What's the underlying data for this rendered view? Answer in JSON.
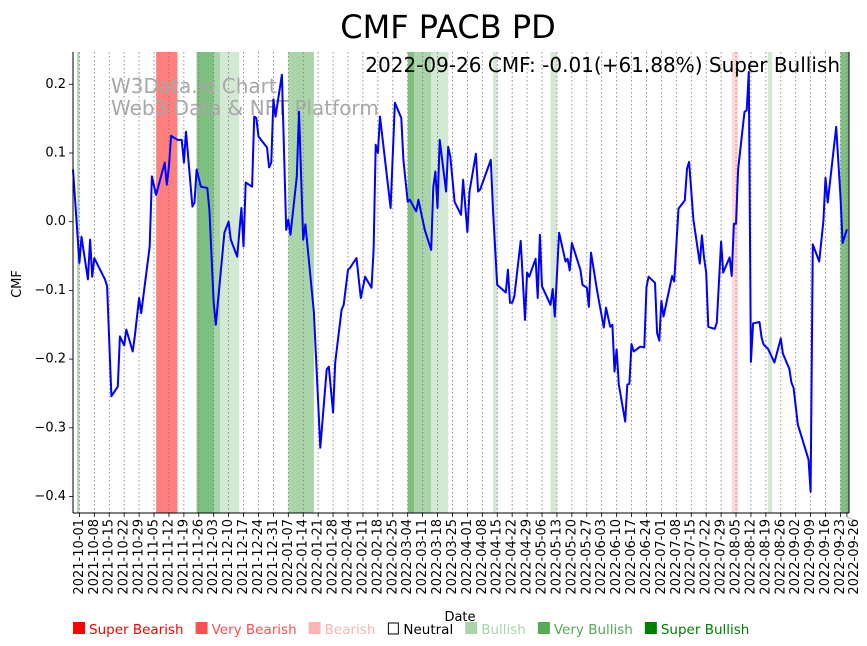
{
  "chart_data": {
    "type": "line",
    "title": "CMF PACB PD",
    "annotation": "2022-09-26 CMF: -0.01(+61.88%) Super Bullish",
    "watermark": [
      "W3Data.io Chart",
      "Web3 Data & NFT Platform"
    ],
    "xlabel": "Date",
    "ylabel": "CMF",
    "xlim": [
      "2021-09-28",
      "2022-09-27"
    ],
    "ylim": [
      -0.424,
      0.247
    ],
    "grid": "vertical dotted at x ticks",
    "yticks": [
      0.2,
      0.1,
      0.0,
      -0.1,
      -0.2,
      -0.3,
      -0.4
    ],
    "ytick_labels": [
      "0.2",
      "0.1",
      "0.0",
      "−0.1",
      "−0.2",
      "−0.3",
      "−0.4"
    ],
    "xticks": [
      "2021-10-01",
      "2021-10-08",
      "2021-10-15",
      "2021-10-22",
      "2021-10-29",
      "2021-11-05",
      "2021-11-12",
      "2021-11-19",
      "2021-11-26",
      "2021-12-03",
      "2021-12-10",
      "2021-12-17",
      "2021-12-24",
      "2021-12-31",
      "2022-01-07",
      "2022-01-14",
      "2022-01-21",
      "2022-01-28",
      "2022-02-04",
      "2022-02-11",
      "2022-02-18",
      "2022-02-25",
      "2022-03-04",
      "2022-03-11",
      "2022-03-18",
      "2022-03-25",
      "2022-04-01",
      "2022-04-08",
      "2022-04-15",
      "2022-04-22",
      "2022-04-29",
      "2022-05-06",
      "2022-05-13",
      "2022-05-20",
      "2022-05-27",
      "2022-06-03",
      "2022-06-10",
      "2022-06-17",
      "2022-06-24",
      "2022-07-01",
      "2022-07-08",
      "2022-07-15",
      "2022-07-22",
      "2022-07-29",
      "2022-08-05",
      "2022-08-12",
      "2022-08-19",
      "2022-08-26",
      "2022-09-02",
      "2022-09-09",
      "2022-09-16",
      "2022-09-23",
      "2022-09-26"
    ],
    "series": [
      {
        "name": "CMF",
        "color": "#0000ff",
        "points": [
          [
            "2021-09-28",
            0.076
          ],
          [
            "2021-10-01",
            -0.06
          ],
          [
            "2021-10-02",
            -0.022
          ],
          [
            "2021-10-05",
            -0.084
          ],
          [
            "2021-10-06",
            -0.026
          ],
          [
            "2021-10-07",
            -0.08
          ],
          [
            "2021-10-08",
            -0.053
          ],
          [
            "2021-10-13",
            -0.084
          ],
          [
            "2021-10-14",
            -0.094
          ],
          [
            "2021-10-16",
            -0.254
          ],
          [
            "2021-10-19",
            -0.24
          ],
          [
            "2021-10-20",
            -0.167
          ],
          [
            "2021-10-22",
            -0.18
          ],
          [
            "2021-10-23",
            -0.157
          ],
          [
            "2021-10-26",
            -0.189
          ],
          [
            "2021-10-27",
            -0.167
          ],
          [
            "2021-10-29",
            -0.111
          ],
          [
            "2021-10-30",
            -0.133
          ],
          [
            "2021-11-03",
            -0.036
          ],
          [
            "2021-11-04",
            0.066
          ],
          [
            "2021-11-06",
            0.039
          ],
          [
            "2021-11-10",
            0.086
          ],
          [
            "2021-11-11",
            0.054
          ],
          [
            "2021-11-12",
            0.08
          ],
          [
            "2021-11-13",
            0.125
          ],
          [
            "2021-11-16",
            0.119
          ],
          [
            "2021-11-18",
            0.119
          ],
          [
            "2021-11-19",
            0.086
          ],
          [
            "2021-11-20",
            0.131
          ],
          [
            "2021-11-23",
            0.022
          ],
          [
            "2021-11-24",
            0.028
          ],
          [
            "2021-11-25",
            0.076
          ],
          [
            "2021-11-27",
            0.051
          ],
          [
            "2021-11-30",
            0.049
          ],
          [
            "2021-12-01",
            0.017
          ],
          [
            "2021-12-03",
            -0.118
          ],
          [
            "2021-12-04",
            -0.15
          ],
          [
            "2021-12-08",
            -0.016
          ],
          [
            "2021-12-10",
            0.0
          ],
          [
            "2021-12-11",
            -0.026
          ],
          [
            "2021-12-14",
            -0.051
          ],
          [
            "2021-12-16",
            0.02
          ],
          [
            "2021-12-17",
            -0.036
          ],
          [
            "2021-12-18",
            0.057
          ],
          [
            "2021-12-21",
            0.051
          ],
          [
            "2021-12-22",
            0.153
          ],
          [
            "2021-12-23",
            0.151
          ],
          [
            "2021-12-24",
            0.124
          ],
          [
            "2021-12-28",
            0.108
          ],
          [
            "2021-12-29",
            0.079
          ],
          [
            "2021-12-30",
            0.086
          ],
          [
            "2021-12-31",
            0.178
          ],
          [
            "2022-01-01",
            0.153
          ],
          [
            "2022-01-04",
            0.214
          ],
          [
            "2022-01-06",
            -0.012
          ],
          [
            "2022-01-07",
            0.003
          ],
          [
            "2022-01-08",
            -0.019
          ],
          [
            "2022-01-11",
            0.066
          ],
          [
            "2022-01-12",
            0.16
          ],
          [
            "2022-01-14",
            -0.026
          ],
          [
            "2022-01-15",
            -0.004
          ],
          [
            "2022-01-19",
            -0.132
          ],
          [
            "2022-01-22",
            -0.329
          ],
          [
            "2022-01-25",
            -0.215
          ],
          [
            "2022-01-26",
            -0.211
          ],
          [
            "2022-01-28",
            -0.278
          ],
          [
            "2022-01-29",
            -0.205
          ],
          [
            "2022-02-01",
            -0.128
          ],
          [
            "2022-02-02",
            -0.121
          ],
          [
            "2022-02-04",
            -0.07
          ],
          [
            "2022-02-05",
            -0.067
          ],
          [
            "2022-02-08",
            -0.053
          ],
          [
            "2022-02-10",
            -0.111
          ],
          [
            "2022-02-12",
            -0.08
          ],
          [
            "2022-02-15",
            -0.096
          ],
          [
            "2022-02-16",
            -0.041
          ],
          [
            "2022-02-17",
            0.112
          ],
          [
            "2022-02-18",
            0.1
          ],
          [
            "2022-02-19",
            0.153
          ],
          [
            "2022-02-24",
            0.02
          ],
          [
            "2022-02-26",
            0.173
          ],
          [
            "2022-03-01",
            0.151
          ],
          [
            "2022-03-02",
            0.09
          ],
          [
            "2022-03-04",
            0.029
          ],
          [
            "2022-03-05",
            0.032
          ],
          [
            "2022-03-08",
            0.015
          ],
          [
            "2022-03-09",
            0.032
          ],
          [
            "2022-03-12",
            -0.012
          ],
          [
            "2022-03-15",
            -0.041
          ],
          [
            "2022-03-16",
            0.051
          ],
          [
            "2022-03-17",
            0.073
          ],
          [
            "2022-03-18",
            0.02
          ],
          [
            "2022-03-19",
            0.119
          ],
          [
            "2022-03-22",
            0.044
          ],
          [
            "2022-03-23",
            0.109
          ],
          [
            "2022-03-24",
            0.095
          ],
          [
            "2022-03-26",
            0.029
          ],
          [
            "2022-03-29",
            0.01
          ],
          [
            "2022-03-30",
            0.061
          ],
          [
            "2022-04-01",
            -0.015
          ],
          [
            "2022-04-02",
            0.044
          ],
          [
            "2022-04-05",
            0.099
          ],
          [
            "2022-04-06",
            0.044
          ],
          [
            "2022-04-07",
            0.047
          ],
          [
            "2022-04-12",
            0.09
          ],
          [
            "2022-04-13",
            0.017
          ],
          [
            "2022-04-15",
            -0.092
          ],
          [
            "2022-04-19",
            -0.103
          ],
          [
            "2022-04-20",
            -0.07
          ],
          [
            "2022-04-21",
            -0.118
          ],
          [
            "2022-04-22",
            -0.118
          ],
          [
            "2022-04-23",
            -0.109
          ],
          [
            "2022-04-26",
            -0.028
          ],
          [
            "2022-04-28",
            -0.143
          ],
          [
            "2022-04-29",
            -0.074
          ],
          [
            "2022-04-30",
            -0.08
          ],
          [
            "2022-05-03",
            -0.054
          ],
          [
            "2022-05-04",
            -0.111
          ],
          [
            "2022-05-05",
            -0.019
          ],
          [
            "2022-05-06",
            -0.094
          ],
          [
            "2022-05-10",
            -0.121
          ],
          [
            "2022-05-11",
            -0.098
          ],
          [
            "2022-05-12",
            -0.138
          ],
          [
            "2022-05-14",
            -0.016
          ],
          [
            "2022-05-17",
            -0.058
          ],
          [
            "2022-05-18",
            -0.054
          ],
          [
            "2022-05-19",
            -0.071
          ],
          [
            "2022-05-20",
            -0.031
          ],
          [
            "2022-05-24",
            -0.07
          ],
          [
            "2022-05-25",
            -0.092
          ],
          [
            "2022-05-27",
            -0.096
          ],
          [
            "2022-05-28",
            -0.124
          ],
          [
            "2022-05-29",
            -0.045
          ],
          [
            "2022-06-01",
            -0.103
          ],
          [
            "2022-06-04",
            -0.154
          ],
          [
            "2022-06-05",
            -0.125
          ],
          [
            "2022-06-07",
            -0.153
          ],
          [
            "2022-06-08",
            -0.15
          ],
          [
            "2022-06-09",
            -0.218
          ],
          [
            "2022-06-10",
            -0.186
          ],
          [
            "2022-06-11",
            -0.237
          ],
          [
            "2022-06-14",
            -0.291
          ],
          [
            "2022-06-15",
            -0.237
          ],
          [
            "2022-06-16",
            -0.236
          ],
          [
            "2022-06-17",
            -0.178
          ],
          [
            "2022-06-18",
            -0.189
          ],
          [
            "2022-06-21",
            -0.182
          ],
          [
            "2022-06-23",
            -0.183
          ],
          [
            "2022-06-24",
            -0.095
          ],
          [
            "2022-06-25",
            -0.08
          ],
          [
            "2022-06-28",
            -0.089
          ],
          [
            "2022-06-29",
            -0.162
          ],
          [
            "2022-06-30",
            -0.173
          ],
          [
            "2022-07-01",
            -0.115
          ],
          [
            "2022-07-02",
            -0.138
          ],
          [
            "2022-07-06",
            -0.079
          ],
          [
            "2022-07-07",
            -0.087
          ],
          [
            "2022-07-09",
            0.019
          ],
          [
            "2022-07-12",
            0.031
          ],
          [
            "2022-07-13",
            0.077
          ],
          [
            "2022-07-14",
            0.087
          ],
          [
            "2022-07-16",
            0.003
          ],
          [
            "2022-07-19",
            -0.061
          ],
          [
            "2022-07-20",
            -0.02
          ],
          [
            "2022-07-21",
            -0.052
          ],
          [
            "2022-07-22",
            -0.074
          ],
          [
            "2022-07-23",
            -0.153
          ],
          [
            "2022-07-26",
            -0.156
          ],
          [
            "2022-07-27",
            -0.147
          ],
          [
            "2022-07-29",
            -0.029
          ],
          [
            "2022-07-30",
            -0.074
          ],
          [
            "2022-08-02",
            -0.052
          ],
          [
            "2022-08-03",
            -0.079
          ],
          [
            "2022-08-04",
            -0.003
          ],
          [
            "2022-08-05",
            -0.003
          ],
          [
            "2022-08-06",
            0.076
          ],
          [
            "2022-08-09",
            0.16
          ],
          [
            "2022-08-10",
            0.162
          ],
          [
            "2022-08-11",
            0.218
          ],
          [
            "2022-08-12",
            -0.204
          ],
          [
            "2022-08-13",
            -0.148
          ],
          [
            "2022-08-16",
            -0.146
          ],
          [
            "2022-08-17",
            -0.169
          ],
          [
            "2022-08-18",
            -0.179
          ],
          [
            "2022-08-20",
            -0.185
          ],
          [
            "2022-08-23",
            -0.205
          ],
          [
            "2022-08-26",
            -0.17
          ],
          [
            "2022-08-27",
            -0.192
          ],
          [
            "2022-08-30",
            -0.214
          ],
          [
            "2022-08-31",
            -0.234
          ],
          [
            "2022-09-01",
            -0.242
          ],
          [
            "2022-09-03",
            -0.295
          ],
          [
            "2022-09-08",
            -0.346
          ],
          [
            "2022-09-09",
            -0.393
          ],
          [
            "2022-09-10",
            -0.033
          ],
          [
            "2022-09-13",
            -0.058
          ],
          [
            "2022-09-15",
            0.001
          ],
          [
            "2022-09-16",
            0.064
          ],
          [
            "2022-09-17",
            0.028
          ],
          [
            "2022-09-21",
            0.138
          ],
          [
            "2022-09-23",
            0.036
          ],
          [
            "2022-09-24",
            -0.031
          ],
          [
            "2022-09-26",
            -0.011
          ]
        ]
      }
    ],
    "bands": [
      {
        "start": "2021-09-30",
        "end": "2021-10-01",
        "signal": "Very Bullish"
      },
      {
        "start": "2021-11-06",
        "end": "2021-11-16",
        "signal": "Super Bearish"
      },
      {
        "start": "2021-11-25",
        "end": "2021-12-03",
        "signal": "Super Bullish"
      },
      {
        "start": "2021-12-03",
        "end": "2021-12-06",
        "signal": "Very Bullish"
      },
      {
        "start": "2021-12-06",
        "end": "2021-12-15",
        "signal": "Bullish"
      },
      {
        "start": "2022-01-07",
        "end": "2022-01-19",
        "signal": "Very Bullish"
      },
      {
        "start": "2022-03-04",
        "end": "2022-03-07",
        "signal": "Super Bullish"
      },
      {
        "start": "2022-03-07",
        "end": "2022-03-15",
        "signal": "Very Bullish"
      },
      {
        "start": "2022-03-15",
        "end": "2022-03-23",
        "signal": "Bullish"
      },
      {
        "start": "2022-04-13",
        "end": "2022-04-15",
        "signal": "Bullish"
      },
      {
        "start": "2022-05-10",
        "end": "2022-05-13",
        "signal": "Bullish"
      },
      {
        "start": "2022-08-03",
        "end": "2022-08-06",
        "signal": "Bearish"
      },
      {
        "start": "2022-08-20",
        "end": "2022-08-22",
        "signal": "Bullish"
      },
      {
        "start": "2022-09-23",
        "end": "2022-09-27",
        "signal": "Super Bullish"
      }
    ],
    "legend": {
      "placement": "bottom",
      "items": [
        {
          "label": "Super Bearish",
          "color": "#ff0000",
          "marker": "filled"
        },
        {
          "label": "Very Bearish",
          "color": "#ff5050",
          "marker": "filled"
        },
        {
          "label": "Bearish",
          "color": "#ffb3b3",
          "marker": "filled"
        },
        {
          "label": "Neutral",
          "color": "#000000",
          "marker": "hollow"
        },
        {
          "label": "Bullish",
          "color": "#aad4aa",
          "marker": "filled"
        },
        {
          "label": "Very Bullish",
          "color": "#55aa55",
          "marker": "filled"
        },
        {
          "label": "Super Bullish",
          "color": "#008000",
          "marker": "filled"
        }
      ]
    }
  }
}
